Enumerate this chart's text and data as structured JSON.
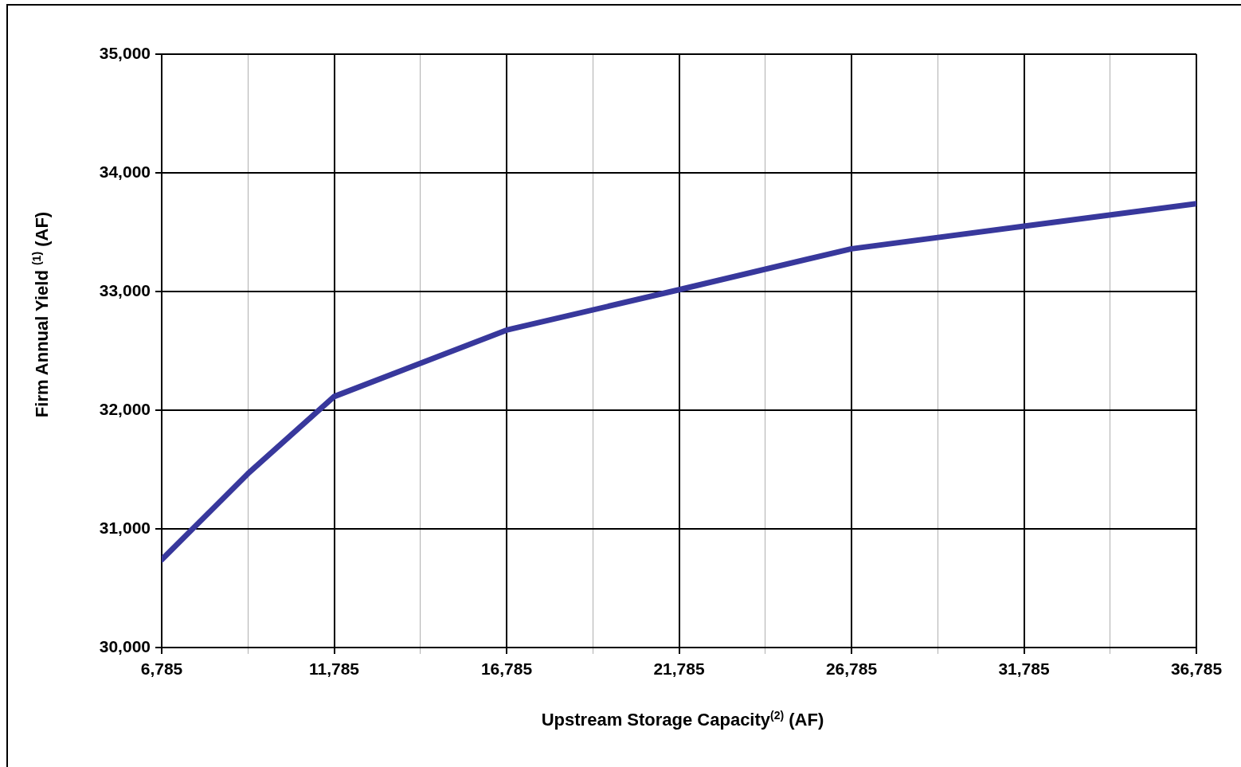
{
  "chart_data": {
    "type": "line",
    "xlabel": "Upstream Storage Capacity$^{(2)}$ (AF)",
    "ylabel": "Firm Annual Yield $^{(1)}$ (AF)",
    "x": [
      6785,
      9285,
      11785,
      16785,
      21785,
      26785,
      31785,
      36785
    ],
    "series": [
      {
        "color": "#38389c",
        "values": [
          30740,
          31465,
          32115,
          32675,
          33015,
          33360,
          33550,
          33740
        ]
      }
    ],
    "xlim": [
      6785,
      36785
    ],
    "xticks": [
      {
        "value": 6785,
        "label": "6,785"
      },
      {
        "value": 9285,
        "label": null
      },
      {
        "value": 11785,
        "label": "11,785"
      },
      {
        "value": 14285,
        "label": null
      },
      {
        "value": 16785,
        "label": "16,785"
      },
      {
        "value": 19285,
        "label": null
      },
      {
        "value": 21785,
        "label": "21,785"
      },
      {
        "value": 24285,
        "label": null
      },
      {
        "value": 26785,
        "label": "26,785"
      },
      {
        "value": 29285,
        "label": null
      },
      {
        "value": 31785,
        "label": "31,785"
      },
      {
        "value": 34285,
        "label": null
      },
      {
        "value": 36785,
        "label": "36,785"
      }
    ],
    "ylim": [
      30000,
      35000
    ],
    "yticks": [
      {
        "value": 30000,
        "label": "30,000"
      },
      {
        "value": 31000,
        "label": "31,000"
      },
      {
        "value": 32000,
        "label": "32,000"
      },
      {
        "value": 33000,
        "label": "33,000"
      },
      {
        "value": 34000,
        "label": "34,000"
      },
      {
        "value": 35000,
        "label": "35,000"
      }
    ],
    "grid": true,
    "legend": false,
    "marker": "none",
    "line_style": "solid"
  }
}
